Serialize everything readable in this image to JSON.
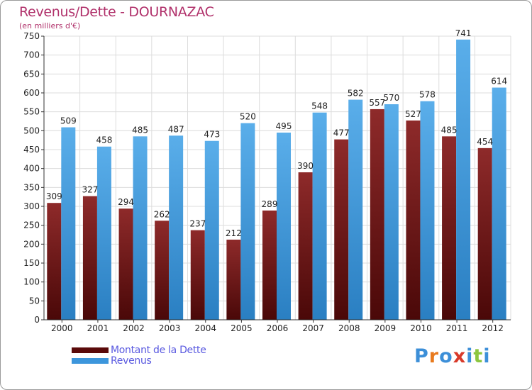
{
  "header": {
    "title": "Revenus/Dette - DOURNAZAC",
    "subtitle": "(en milliers d'€)"
  },
  "chart_data": {
    "type": "bar",
    "categories": [
      "2000",
      "2001",
      "2002",
      "2003",
      "2004",
      "2005",
      "2006",
      "2007",
      "2008",
      "2009",
      "2010",
      "2011",
      "2012"
    ],
    "series": [
      {
        "name": "Montant de la Dette",
        "color": "#7a1a1a",
        "values": [
          309,
          327,
          294,
          262,
          237,
          212,
          289,
          390,
          477,
          557,
          527,
          485,
          454
        ]
      },
      {
        "name": "Revenus",
        "color": "#3c96dc",
        "values": [
          509,
          458,
          485,
          487,
          473,
          520,
          495,
          548,
          582,
          570,
          578,
          741,
          614
        ]
      }
    ],
    "ylim": [
      0,
      750
    ],
    "yticks": [
      0,
      50,
      100,
      150,
      200,
      250,
      300,
      350,
      400,
      450,
      500,
      550,
      600,
      650,
      700,
      750
    ],
    "grid": true,
    "data_labels": true,
    "legend_position": "bottom-left"
  },
  "legend": [
    {
      "label": "Montant de la Dette",
      "color": "#7a1a1a"
    },
    {
      "label": "Revenus",
      "color": "#3c96dc"
    }
  ],
  "logo": {
    "letters": [
      "P",
      "r",
      "o",
      "x",
      "i",
      "t",
      "i"
    ],
    "colors": [
      "#3c8fd8",
      "#e87a1e",
      "#3c8fd8",
      "#d83a2a",
      "#3c8fd8",
      "#8cc63f",
      "#3c8fd8"
    ]
  }
}
